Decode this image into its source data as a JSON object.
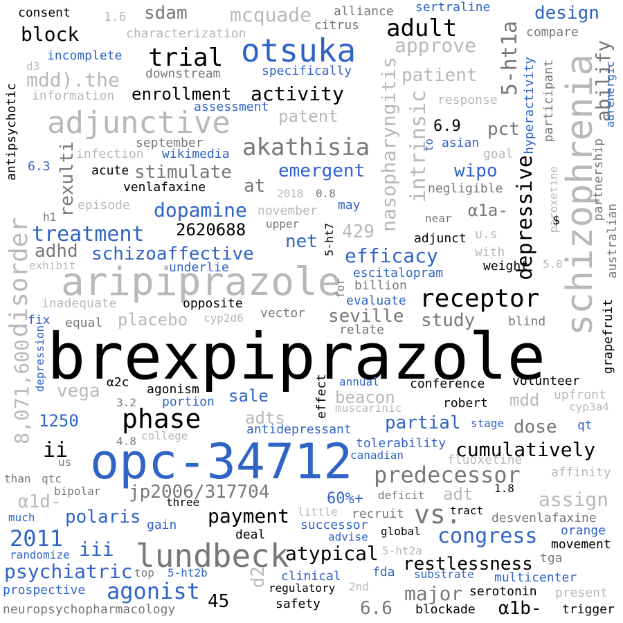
{
  "palette": {
    "black": "#000000",
    "gray": "#777777",
    "lightgray": "#b8b8b8",
    "blue": "#2f63c6",
    "background": "#ffffff"
  },
  "words": [
    {
      "text": "brexpiprazole",
      "color": "black"
    },
    {
      "text": "opc-34712",
      "color": "blue"
    },
    {
      "text": "aripiprazole",
      "color": "lightgray"
    },
    {
      "text": "schizophrenia",
      "color": "lightgray"
    },
    {
      "text": "otsuka",
      "color": "blue"
    },
    {
      "text": "adjunctive",
      "color": "lightgray"
    },
    {
      "text": "lundbeck",
      "color": "gray"
    },
    {
      "text": "phase",
      "color": "black"
    },
    {
      "text": "receptor",
      "color": "black"
    },
    {
      "text": "vs.",
      "color": "gray"
    },
    {
      "text": "disorder",
      "color": "lightgray"
    },
    {
      "text": "predecessor",
      "color": "gray"
    },
    {
      "text": "akathisia",
      "color": "gray"
    },
    {
      "text": "trial",
      "color": "black"
    },
    {
      "text": "adult",
      "color": "black"
    },
    {
      "text": "treatment",
      "color": "blue"
    },
    {
      "text": "depressive",
      "color": "black"
    },
    {
      "text": "intrinsic",
      "color": "lightgray"
    },
    {
      "text": "5-ht1a",
      "color": "gray"
    },
    {
      "text": "activity",
      "color": "black"
    },
    {
      "text": "enrollment",
      "color": "black"
    },
    {
      "text": "cumulatively",
      "color": "black"
    },
    {
      "text": "congress",
      "color": "blue"
    },
    {
      "text": "payment",
      "color": "black"
    },
    {
      "text": "atypical",
      "color": "black"
    },
    {
      "text": "agonist",
      "color": "blue"
    },
    {
      "text": "psychiatric",
      "color": "blue"
    },
    {
      "text": "2011",
      "color": "blue"
    },
    {
      "text": "dopamine",
      "color": "blue"
    },
    {
      "text": "schizoaffective",
      "color": "blue"
    },
    {
      "text": "efficacy",
      "color": "blue"
    },
    {
      "text": "nasopharyngitis",
      "color": "lightgray"
    },
    {
      "text": "8,071,600",
      "color": "lightgray"
    },
    {
      "text": "emergent",
      "color": "blue"
    },
    {
      "text": "stimulate",
      "color": "gray"
    },
    {
      "text": "abilify",
      "color": "gray"
    },
    {
      "text": "rexulti",
      "color": "gray"
    },
    {
      "text": "jp2006/317704",
      "color": "gray"
    },
    {
      "text": "restlessness",
      "color": "black"
    },
    {
      "text": "major",
      "color": "gray"
    },
    {
      "text": "polaris",
      "color": "blue"
    },
    {
      "text": "iii",
      "color": "blue"
    },
    {
      "text": "ii",
      "color": "black"
    },
    {
      "text": "2620688",
      "color": "black"
    },
    {
      "text": "seville",
      "color": "gray"
    },
    {
      "text": "study",
      "color": "gray"
    },
    {
      "text": "partial",
      "color": "blue"
    },
    {
      "text": "dose",
      "color": "gray"
    },
    {
      "text": "mdd",
      "color": "lightgray"
    },
    {
      "text": "assign",
      "color": "lightgray"
    },
    {
      "text": "sdam",
      "color": "gray"
    },
    {
      "text": "mcquade",
      "color": "lightgray"
    },
    {
      "text": "design",
      "color": "blue"
    },
    {
      "text": "block",
      "color": "black"
    },
    {
      "text": "approve",
      "color": "lightgray"
    },
    {
      "text": "patient",
      "color": "lightgray"
    },
    {
      "text": "mdd).the",
      "color": "lightgray"
    },
    {
      "text": "patent",
      "color": "lightgray"
    },
    {
      "text": "pct",
      "color": "gray"
    },
    {
      "text": "6.9",
      "color": "black"
    },
    {
      "text": "wipo",
      "color": "blue"
    },
    {
      "text": "α1a-",
      "color": "gray"
    },
    {
      "text": "at",
      "color": "gray"
    },
    {
      "text": "net",
      "color": "blue"
    },
    {
      "text": "429",
      "color": "lightgray"
    },
    {
      "text": "adhd",
      "color": "gray"
    },
    {
      "text": "placebo",
      "color": "lightgray"
    },
    {
      "text": "vega",
      "color": "lightgray"
    },
    {
      "text": "sale",
      "color": "blue"
    },
    {
      "text": "adts",
      "color": "lightgray"
    },
    {
      "text": "beacon",
      "color": "lightgray"
    },
    {
      "text": "1250",
      "color": "blue"
    },
    {
      "text": "adt",
      "color": "lightgray"
    },
    {
      "text": "60%+",
      "color": "blue"
    },
    {
      "text": "α1d-",
      "color": "lightgray"
    },
    {
      "text": "d2",
      "color": "lightgray"
    },
    {
      "text": "45",
      "color": "black"
    },
    {
      "text": "6.6",
      "color": "gray"
    },
    {
      "text": "α1b-",
      "color": "black"
    },
    {
      "text": "gain",
      "color": "blue"
    },
    {
      "text": "successor",
      "color": "blue"
    },
    {
      "text": "consent",
      "color": "black"
    },
    {
      "text": "1.6",
      "color": "lightgray"
    },
    {
      "text": "characterization",
      "color": "lightgray"
    },
    {
      "text": "alliance",
      "color": "gray"
    },
    {
      "text": "citrus",
      "color": "gray"
    },
    {
      "text": "sertraline",
      "color": "blue"
    },
    {
      "text": "compare",
      "color": "gray"
    },
    {
      "text": "incomplete",
      "color": "blue"
    },
    {
      "text": "d3",
      "color": "lightgray"
    },
    {
      "text": "downstream",
      "color": "gray"
    },
    {
      "text": "specifically",
      "color": "blue"
    },
    {
      "text": "information",
      "color": "lightgray"
    },
    {
      "text": "assessment",
      "color": "blue"
    },
    {
      "text": "response",
      "color": "lightgray"
    },
    {
      "text": "antipsychotic",
      "color": "black"
    },
    {
      "text": "hyperactivity",
      "color": "blue"
    },
    {
      "text": "participant",
      "color": "gray"
    },
    {
      "text": "adrenergic",
      "color": "blue"
    },
    {
      "text": "september",
      "color": "gray"
    },
    {
      "text": "infection",
      "color": "lightgray"
    },
    {
      "text": "wikimedia",
      "color": "blue"
    },
    {
      "text": "to",
      "color": "blue"
    },
    {
      "text": "asian",
      "color": "blue"
    },
    {
      "text": "goal",
      "color": "lightgray"
    },
    {
      "text": "6.3",
      "color": "blue"
    },
    {
      "text": "acute",
      "color": "black"
    },
    {
      "text": "venlafaxine",
      "color": "black"
    },
    {
      "text": "paroxetine",
      "color": "lightgray"
    },
    {
      "text": "partnership",
      "color": "gray"
    },
    {
      "text": "australian",
      "color": "gray"
    },
    {
      "text": "negligible",
      "color": "gray"
    },
    {
      "text": "2018",
      "color": "lightgray"
    },
    {
      "text": "0.8",
      "color": "gray"
    },
    {
      "text": "episode",
      "color": "lightgray"
    },
    {
      "text": "november",
      "color": "lightgray"
    },
    {
      "text": "may",
      "color": "blue"
    },
    {
      "text": "h1",
      "color": "gray"
    },
    {
      "text": "upper",
      "color": "gray"
    },
    {
      "text": "near",
      "color": "gray"
    },
    {
      "text": "$",
      "color": "black"
    },
    {
      "text": "u.s",
      "color": "lightgray"
    },
    {
      "text": "5-ht7",
      "color": "black"
    },
    {
      "text": "adjunct",
      "color": "black"
    },
    {
      "text": "exhibit",
      "color": "lightgray"
    },
    {
      "text": "underlie",
      "color": "blue"
    },
    {
      "text": "with",
      "color": "lightgray"
    },
    {
      "text": "weight",
      "color": "black"
    },
    {
      "text": "5.0",
      "color": "lightgray"
    },
    {
      "text": "billion",
      "color": "gray"
    },
    {
      "text": "for",
      "color": "gray"
    },
    {
      "text": "escitalopram",
      "color": "blue"
    },
    {
      "text": "inadequate",
      "color": "lightgray"
    },
    {
      "text": "opposite",
      "color": "black"
    },
    {
      "text": "evaluate",
      "color": "blue"
    },
    {
      "text": "vector",
      "color": "gray"
    },
    {
      "text": "cyp2d6",
      "color": "lightgray"
    },
    {
      "text": "fix",
      "color": "blue"
    },
    {
      "text": "equal",
      "color": "gray"
    },
    {
      "text": "relate",
      "color": "gray"
    },
    {
      "text": "blind",
      "color": "gray"
    },
    {
      "text": "grapefruit",
      "color": "black"
    },
    {
      "text": "depression",
      "color": "blue"
    },
    {
      "text": "α2c",
      "color": "black"
    },
    {
      "text": "agonism",
      "color": "black"
    },
    {
      "text": "effect",
      "color": "black"
    },
    {
      "text": "annual",
      "color": "blue"
    },
    {
      "text": "conference",
      "color": "black"
    },
    {
      "text": "volunteer",
      "color": "black"
    },
    {
      "text": "portion",
      "color": "blue"
    },
    {
      "text": "3.2",
      "color": "gray"
    },
    {
      "text": "muscarinic",
      "color": "lightgray"
    },
    {
      "text": "robert",
      "color": "black"
    },
    {
      "text": "upfront",
      "color": "lightgray"
    },
    {
      "text": "cyp3a4",
      "color": "lightgray"
    },
    {
      "text": "stage",
      "color": "blue"
    },
    {
      "text": "qt",
      "color": "blue"
    },
    {
      "text": "college",
      "color": "lightgray"
    },
    {
      "text": "4.8",
      "color": "gray"
    },
    {
      "text": "antidepressant",
      "color": "blue"
    },
    {
      "text": "tolerability",
      "color": "blue"
    },
    {
      "text": "canadian",
      "color": "blue"
    },
    {
      "text": "us",
      "color": "gray"
    },
    {
      "text": "fluoxetine",
      "color": "lightgray"
    },
    {
      "text": "than",
      "color": "gray"
    },
    {
      "text": "qtc",
      "color": "gray"
    },
    {
      "text": "affinity",
      "color": "lightgray"
    },
    {
      "text": "bipolar",
      "color": "gray"
    },
    {
      "text": "three",
      "color": "black"
    },
    {
      "text": "deficit",
      "color": "gray"
    },
    {
      "text": "1.8",
      "color": "black"
    },
    {
      "text": "much",
      "color": "blue"
    },
    {
      "text": "little",
      "color": "lightgray"
    },
    {
      "text": "recruit",
      "color": "gray"
    },
    {
      "text": "tract",
      "color": "black"
    },
    {
      "text": "desvenlafaxine",
      "color": "gray"
    },
    {
      "text": "deal",
      "color": "black"
    },
    {
      "text": "global",
      "color": "black"
    },
    {
      "text": "advise",
      "color": "blue"
    },
    {
      "text": "orange",
      "color": "blue"
    },
    {
      "text": "movement",
      "color": "black"
    },
    {
      "text": "randomize",
      "color": "blue"
    },
    {
      "text": "5-ht2a",
      "color": "lightgray"
    },
    {
      "text": "tga",
      "color": "gray"
    },
    {
      "text": "top",
      "color": "gray"
    },
    {
      "text": "5-ht2b",
      "color": "blue"
    },
    {
      "text": "fda",
      "color": "blue"
    },
    {
      "text": "substrate",
      "color": "blue"
    },
    {
      "text": "multicenter",
      "color": "blue"
    },
    {
      "text": "clinical",
      "color": "blue"
    },
    {
      "text": "prospective",
      "color": "blue"
    },
    {
      "text": "regulatory",
      "color": "black"
    },
    {
      "text": "2nd",
      "color": "lightgray"
    },
    {
      "text": "serotonin",
      "color": "black"
    },
    {
      "text": "present",
      "color": "lightgray"
    },
    {
      "text": "neuropsychopharmacology",
      "color": "gray"
    },
    {
      "text": "safety",
      "color": "black"
    },
    {
      "text": "blockade",
      "color": "black"
    },
    {
      "text": "trigger",
      "color": "black"
    }
  ]
}
